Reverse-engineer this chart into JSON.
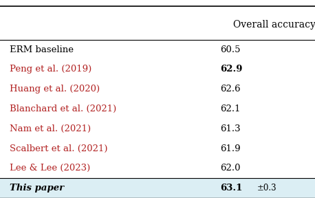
{
  "header": "Overall accuracy",
  "rows": [
    {
      "label": "ERM baseline",
      "value": "60.5",
      "color": "#000000",
      "bold_value": false,
      "italic_label": false
    },
    {
      "label": "Peng et al. (2019)",
      "value": "62.9",
      "color": "#b22222",
      "bold_value": true,
      "italic_label": false
    },
    {
      "label": "Huang et al. (2020)",
      "value": "62.6",
      "color": "#b22222",
      "bold_value": false,
      "italic_label": false
    },
    {
      "label": "Blanchard et al. (2021)",
      "value": "62.1",
      "color": "#b22222",
      "bold_value": false,
      "italic_label": false
    },
    {
      "label": "Nam et al. (2021)",
      "value": "61.3",
      "color": "#b22222",
      "bold_value": false,
      "italic_label": false
    },
    {
      "label": "Scalbert et al. (2021)",
      "value": "61.9",
      "color": "#b22222",
      "bold_value": false,
      "italic_label": false
    },
    {
      "label": "Lee & Lee (2023)",
      "value": "62.0",
      "color": "#b22222",
      "bold_value": false,
      "italic_label": false
    },
    {
      "label": "This paper",
      "value": "63.1",
      "color": "#000000",
      "bold_value": true,
      "italic_label": true,
      "pm": "±0.3",
      "highlight": "#dbeef4"
    }
  ],
  "bg_color": "#ffffff",
  "header_color": "#000000",
  "figsize": [
    4.58,
    2.88
  ],
  "dpi": 100
}
